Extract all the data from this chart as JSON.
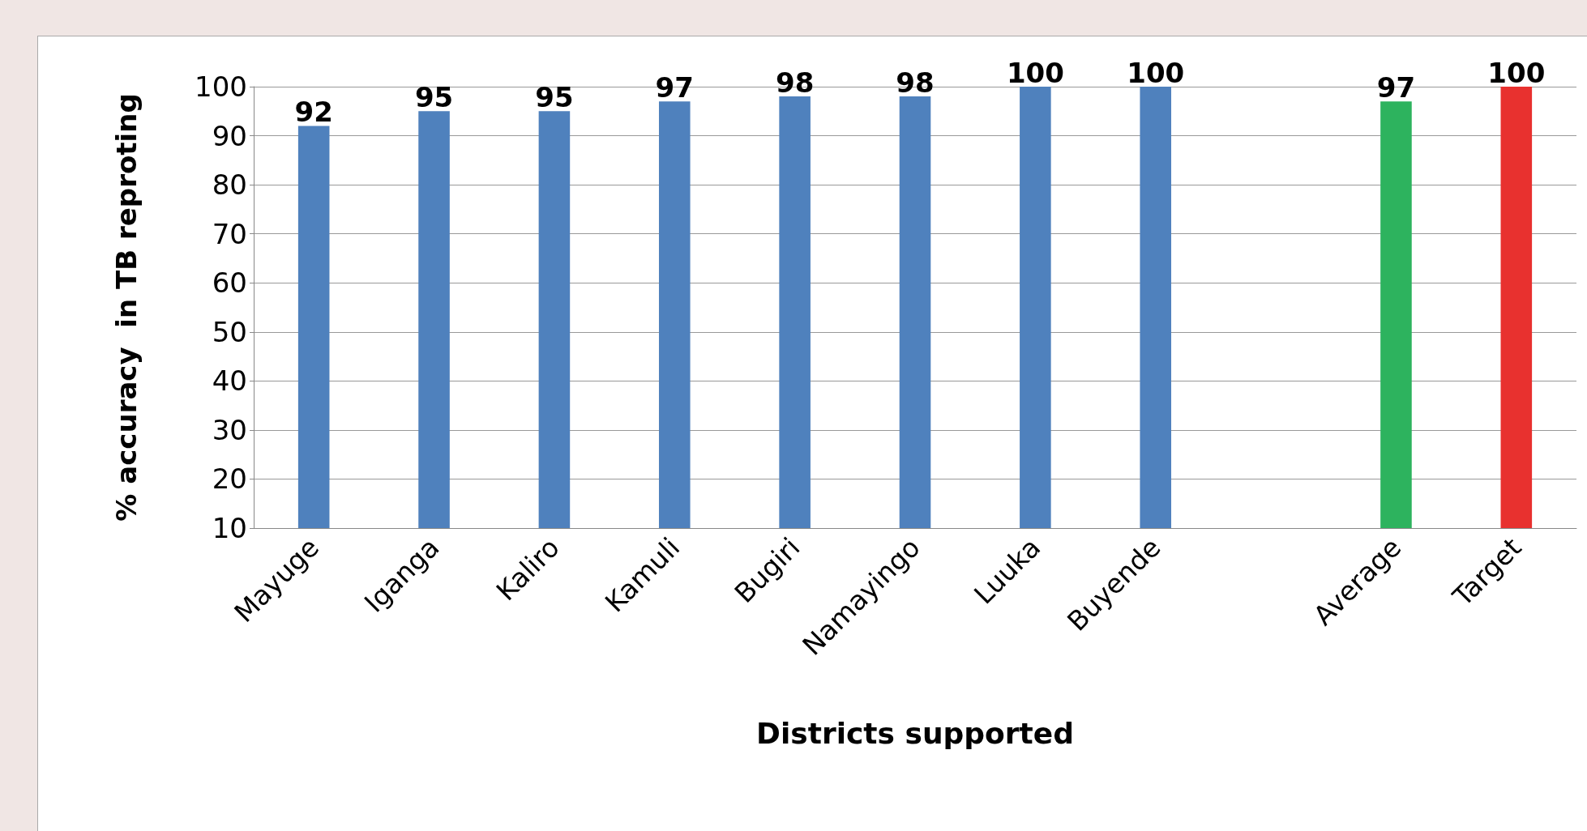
{
  "chart_data": {
    "type": "bar",
    "xlabel": "Districts supported",
    "ylabel": "% accuracy  in TB reproting",
    "categories": [
      "Mayuge",
      "Iganga",
      "Kaliro",
      "Kamuli",
      "Bugiri",
      "Namayingo",
      "Luuka",
      "Buyende",
      null,
      "Average",
      "Target"
    ],
    "values": [
      92,
      95,
      95,
      97,
      98,
      98,
      100,
      100,
      null,
      97,
      100
    ],
    "colors": [
      "#4f81bd",
      "#4f81bd",
      "#4f81bd",
      "#4f81bd",
      "#4f81bd",
      "#4f81bd",
      "#4f81bd",
      "#4f81bd",
      "#4f81bd",
      "#2db35e",
      "#e8312f"
    ],
    "ylim": [
      10,
      100
    ],
    "yticks": [
      10,
      20,
      30,
      40,
      50,
      60,
      70,
      80,
      90,
      100
    ],
    "grid": "y",
    "data_labels": true
  }
}
